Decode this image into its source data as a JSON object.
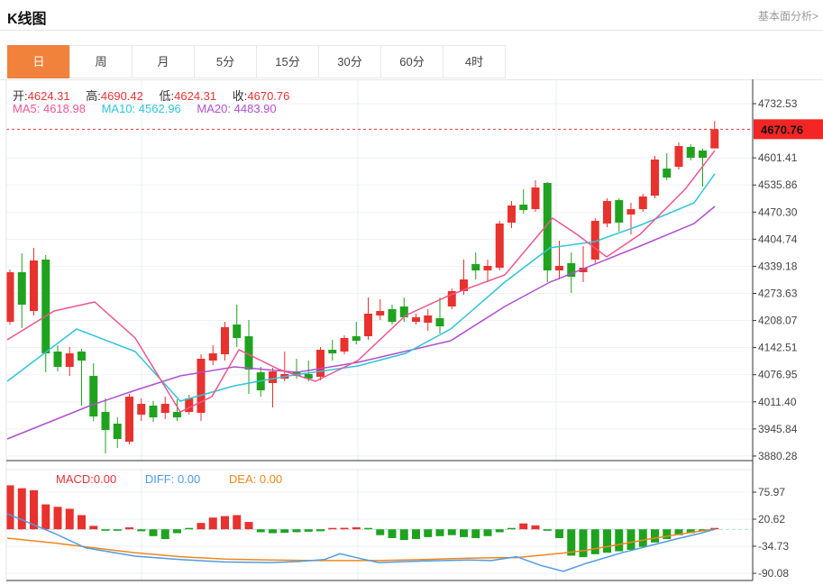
{
  "header": {
    "title": "K线图",
    "link": "基本面分析>"
  },
  "tabs": [
    {
      "label": "日",
      "active": true
    },
    {
      "label": "周",
      "active": false
    },
    {
      "label": "月",
      "active": false
    },
    {
      "label": "5分",
      "active": false
    },
    {
      "label": "15分",
      "active": false
    },
    {
      "label": "30分",
      "active": false
    },
    {
      "label": "60分",
      "active": false
    },
    {
      "label": "4时",
      "active": false
    }
  ],
  "info_bar": {
    "open_label": "开:",
    "open_value": "4624.31",
    "high_label": "高:",
    "high_value": "4690.42",
    "low_label": "低:",
    "low_value": "4624.31",
    "close_label": "收:",
    "close_value": "4670.76"
  },
  "ma_bar": {
    "ma5_label": "MA5:",
    "ma5_value": "4618.98",
    "ma10_label": "MA10:",
    "ma10_value": "4562.96",
    "ma20_label": "MA20:",
    "ma20_value": "4483.90"
  },
  "macd_bar": {
    "macd_label": "MACD:",
    "macd_value": "0.00",
    "diff_label": "DIFF:",
    "diff_value": "0.00",
    "dea_label": "DEA:",
    "dea_value": "0.00"
  },
  "colors": {
    "up": "#e8322e",
    "down": "#1fa31f",
    "ma5": "#f0568e",
    "ma10": "#2fc4dc",
    "ma20": "#b04fd0",
    "diff": "#4f9be4",
    "dea": "#f0861c",
    "tab_active": "#f0823c",
    "price_tag_bg": "#f42525",
    "current_line": "#f03c3c",
    "grid": "#eef1f6",
    "vgrid": "#e9edf4",
    "axis_line": "#333333",
    "axis_text": "#444444",
    "zero_dash": "#aed6f1"
  },
  "chart_data": {
    "type": "candlestick",
    "title": "K线图",
    "legend": [
      "MA5",
      "MA10",
      "MA20",
      "MACD",
      "DIFF",
      "DEA"
    ],
    "price_axis": {
      "ticks": [
        4732.53,
        4601.41,
        4535.86,
        4470.3,
        4404.74,
        4339.18,
        4273.63,
        4208.07,
        4142.51,
        4076.95,
        4011.4,
        3945.84,
        3880.28
      ],
      "current_price": 4670.76,
      "range": [
        3880.28,
        4732.53
      ]
    },
    "macd_axis": {
      "ticks": [
        75.97,
        20.62,
        -34.73,
        -90.08
      ],
      "range": [
        -90.08,
        75.97
      ]
    },
    "vgrid_x": [
      157,
      397,
      617
    ],
    "candles": [
      [
        4204.9,
        4331.4,
        4198.4,
        4324.9,
        1
      ],
      [
        4324.9,
        4370.6,
        4189.7,
        4246.4,
        -1
      ],
      [
        4231.1,
        4383.7,
        4220.2,
        4353.2,
        1
      ],
      [
        4355.4,
        4366.3,
        4082.8,
        4128.6,
        -1
      ],
      [
        4133.0,
        4148.2,
        4085.0,
        4095.9,
        -1
      ],
      [
        4095.9,
        4143.9,
        4074.1,
        4128.6,
        1
      ],
      [
        4133.0,
        4139.5,
        4002.2,
        4111.2,
        -1
      ],
      [
        4074.1,
        4104.7,
        3965.1,
        3976.0,
        -1
      ],
      [
        3986.9,
        4019.6,
        3886.6,
        3943.3,
        -1
      ],
      [
        3958.6,
        3973.8,
        3899.7,
        3921.5,
        -1
      ],
      [
        3915.0,
        4030.5,
        3908.4,
        4023.9,
        1
      ],
      [
        3980.4,
        4019.6,
        3965.1,
        4006.5,
        1
      ],
      [
        4002.2,
        4013.0,
        3963.0,
        3973.8,
        -1
      ],
      [
        3984.7,
        4023.9,
        3969.5,
        4006.5,
        1
      ],
      [
        3986.9,
        4017.4,
        3965.1,
        3973.8,
        -1
      ],
      [
        3986.9,
        4028.3,
        3980.4,
        4019.6,
        1
      ],
      [
        3984.7,
        4126.4,
        3965.1,
        4115.6,
        1
      ],
      [
        4111.2,
        4148.2,
        4100.3,
        4128.6,
        1
      ],
      [
        4126.4,
        4204.9,
        4111.2,
        4191.9,
        1
      ],
      [
        4198.4,
        4246.4,
        4143.9,
        4165.7,
        -1
      ],
      [
        4170.0,
        4209.3,
        4030.5,
        4089.4,
        -1
      ],
      [
        4082.8,
        4095.9,
        4023.9,
        4039.2,
        -1
      ],
      [
        4056.7,
        4093.7,
        3997.8,
        4085.0,
        1
      ],
      [
        4067.6,
        4133.0,
        4061.0,
        4078.5,
        1
      ],
      [
        4085.0,
        4115.6,
        4067.6,
        4074.1,
        -1
      ],
      [
        4078.5,
        4111.2,
        4061.0,
        4067.6,
        -1
      ],
      [
        4071.9,
        4143.9,
        4063.2,
        4137.3,
        1
      ],
      [
        4137.3,
        4161.3,
        4111.2,
        4128.6,
        -1
      ],
      [
        4133.0,
        4172.2,
        4126.4,
        4165.7,
        1
      ],
      [
        4170.0,
        4204.9,
        4150.4,
        4159.1,
        -1
      ],
      [
        4170.0,
        4263.8,
        4161.3,
        4224.6,
        1
      ],
      [
        4220.2,
        4259.5,
        4209.3,
        4231.1,
        1
      ],
      [
        4235.5,
        4246.4,
        4198.4,
        4204.9,
        -1
      ],
      [
        4242.0,
        4263.8,
        4204.9,
        4215.8,
        -1
      ],
      [
        4204.9,
        4224.6,
        4198.4,
        4215.8,
        1
      ],
      [
        4202.7,
        4235.5,
        4183.1,
        4220.2,
        1
      ],
      [
        4213.6,
        4263.8,
        4176.6,
        4194.0,
        -1
      ],
      [
        4242.0,
        4285.6,
        4235.5,
        4279.1,
        1
      ],
      [
        4279.1,
        4355.4,
        4270.4,
        4307.4,
        1
      ],
      [
        4344.5,
        4372.8,
        4307.4,
        4329.2,
        -1
      ],
      [
        4329.2,
        4355.4,
        4300.9,
        4340.1,
        1
      ],
      [
        4335.8,
        4449.1,
        4329.2,
        4442.6,
        1
      ],
      [
        4444.8,
        4497.1,
        4431.7,
        4486.2,
        1
      ],
      [
        4488.3,
        4525.4,
        4466.6,
        4475.3,
        -1
      ],
      [
        4477.4,
        4547.2,
        4470.9,
        4529.8,
        1
      ],
      [
        4540.7,
        4542.9,
        4300.9,
        4329.2,
        -1
      ],
      [
        4329.2,
        4401.2,
        4307.4,
        4340.1,
        1
      ],
      [
        4346.7,
        4372.8,
        4274.7,
        4314.0,
        -1
      ],
      [
        4324.9,
        4388.1,
        4300.9,
        4335.8,
        1
      ],
      [
        4355.4,
        4455.7,
        4346.7,
        4449.1,
        1
      ],
      [
        4442.6,
        4503.6,
        4433.9,
        4497.1,
        1
      ],
      [
        4499.2,
        4503.6,
        4423.0,
        4444.8,
        -1
      ],
      [
        4464.4,
        4492.7,
        4416.4,
        4477.4,
        1
      ],
      [
        4477.4,
        4514.5,
        4470.9,
        4508.0,
        1
      ],
      [
        4510.1,
        4606.1,
        4503.6,
        4597.4,
        1
      ],
      [
        4575.6,
        4612.6,
        4547.2,
        4553.8,
        -1
      ],
      [
        4579.9,
        4638.8,
        4573.4,
        4630.1,
        1
      ],
      [
        4627.9,
        4634.4,
        4595.2,
        4601.7,
        -1
      ],
      [
        4619.2,
        4623.5,
        4532.0,
        4601.7,
        -1
      ],
      [
        4624.31,
        4690.42,
        4624.31,
        4670.76,
        1
      ]
    ],
    "ma5": [
      [
        8,
        4161.3
      ],
      [
        60,
        4231.1
      ],
      [
        105,
        4252.9
      ],
      [
        150,
        4165.7
      ],
      [
        200,
        3986.9
      ],
      [
        235,
        4023.9
      ],
      [
        265,
        4137.3
      ],
      [
        310,
        4089.4
      ],
      [
        350,
        4061.0
      ],
      [
        397,
        4111.2
      ],
      [
        450,
        4220.2
      ],
      [
        500,
        4270.4
      ],
      [
        560,
        4318.3
      ],
      [
        613,
        4455.7
      ],
      [
        640,
        4416.4
      ],
      [
        673,
        4361.9
      ],
      [
        710,
        4416.4
      ],
      [
        760,
        4525.4
      ],
      [
        793,
        4618.98
      ]
    ],
    "ma10": [
      [
        8,
        4061.0
      ],
      [
        85,
        4187.5
      ],
      [
        150,
        4133.0
      ],
      [
        200,
        4013.0
      ],
      [
        260,
        4050.1
      ],
      [
        320,
        4074.1
      ],
      [
        397,
        4098.1
      ],
      [
        450,
        4128.6
      ],
      [
        500,
        4187.5
      ],
      [
        560,
        4300.9
      ],
      [
        610,
        4383.7
      ],
      [
        660,
        4399.0
      ],
      [
        710,
        4438.3
      ],
      [
        770,
        4492.7
      ],
      [
        793,
        4562.96
      ]
    ],
    "ma20": [
      [
        8,
        3921.5
      ],
      [
        100,
        4002.2
      ],
      [
        150,
        4039.2
      ],
      [
        200,
        4074.1
      ],
      [
        260,
        4095.9
      ],
      [
        330,
        4082.8
      ],
      [
        397,
        4106.8
      ],
      [
        500,
        4159.1
      ],
      [
        560,
        4242.0
      ],
      [
        610,
        4300.9
      ],
      [
        710,
        4388.1
      ],
      [
        770,
        4442.6
      ],
      [
        793,
        4483.9
      ]
    ],
    "macd_hist": [
      90,
      84,
      80,
      51,
      46,
      42,
      29,
      7,
      -3,
      -3,
      4,
      -4,
      -14,
      -20,
      -8,
      -2,
      13,
      24,
      27,
      29,
      15,
      -6,
      -8,
      -7,
      -6,
      -5,
      -4,
      2,
      3,
      4,
      -2,
      -12,
      -18,
      -22,
      -20,
      -16,
      -14,
      -12,
      -16,
      -18,
      -14,
      -6,
      -2,
      12,
      8,
      -3,
      -18,
      -54,
      -57,
      -51,
      -48,
      -45,
      -42,
      -36,
      -27,
      -20,
      -12,
      -8,
      -4,
      0
    ],
    "diff_line": [
      [
        8,
        32
      ],
      [
        60,
        -8
      ],
      [
        95,
        -38
      ],
      [
        150,
        -55
      ],
      [
        200,
        -62
      ],
      [
        250,
        -67
      ],
      [
        300,
        -68
      ],
      [
        330,
        -66
      ],
      [
        360,
        -62
      ],
      [
        377,
        -50
      ],
      [
        400,
        -60
      ],
      [
        420,
        -68
      ],
      [
        470,
        -65
      ],
      [
        520,
        -63
      ],
      [
        545,
        -64
      ],
      [
        573,
        -56
      ],
      [
        600,
        -74
      ],
      [
        625,
        -86
      ],
      [
        650,
        -70
      ],
      [
        690,
        -48
      ],
      [
        720,
        -34
      ],
      [
        750,
        -20
      ],
      [
        775,
        -9
      ],
      [
        793,
        0
      ]
    ],
    "dea_line": [
      [
        8,
        -18
      ],
      [
        60,
        -28
      ],
      [
        100,
        -37
      ],
      [
        150,
        -48
      ],
      [
        200,
        -56
      ],
      [
        250,
        -61
      ],
      [
        300,
        -63
      ],
      [
        350,
        -64
      ],
      [
        420,
        -64
      ],
      [
        470,
        -62
      ],
      [
        520,
        -59
      ],
      [
        560,
        -58
      ],
      [
        573,
        -58
      ],
      [
        623,
        -49
      ],
      [
        650,
        -43
      ],
      [
        690,
        -30
      ],
      [
        720,
        -20
      ],
      [
        750,
        -11
      ],
      [
        775,
        -4
      ],
      [
        793,
        0
      ]
    ]
  }
}
